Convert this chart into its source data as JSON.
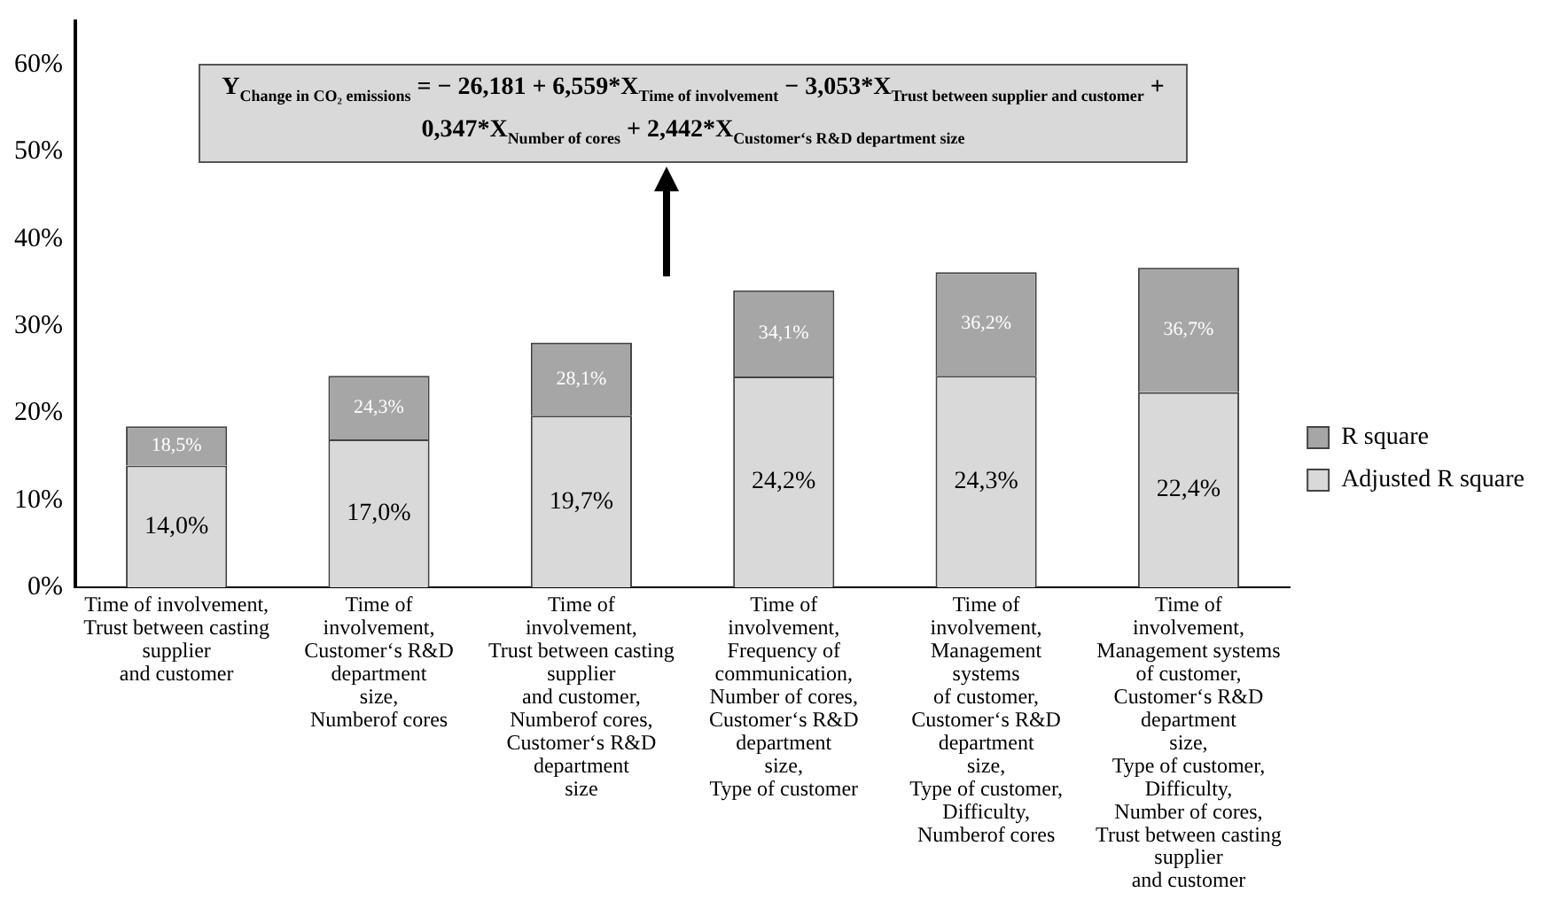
{
  "chart_data": {
    "type": "bar",
    "stacked": true,
    "categories": [
      "Time of involvement,\nTrust between casting\nsupplier\nand customer",
      "Time of\ninvolvement,\nCustomer‘s R&D\ndepartment\nsize,\nNumberof cores",
      "Time of\ninvolvement,\nTrust between casting\nsupplier\nand customer,\nNumberof cores,\nCustomer‘s R&D\ndepartment\nsize",
      "Time of\ninvolvement,\nFrequency of\ncommunication,\nNumber of cores,\nCustomer‘s R&D\ndepartment\nsize,\nType of customer",
      "Time of\ninvolvement,\nManagement\nsystems\nof customer,\nCustomer‘s R&D\ndepartment\nsize,\nType of customer,\nDifficulty,\nNumberof cores",
      "Time of\ninvolvement,\nManagement systems\nof customer,\nCustomer‘s R&D\ndepartment\nsize,\nType of customer,\nDifficulty,\nNumber of cores,\nTrust between casting\nsupplier\nand customer"
    ],
    "series": [
      {
        "name": "Adjusted R square",
        "color": "#d9d9d9",
        "values": [
          14.0,
          17.0,
          19.7,
          24.2,
          24.3,
          22.4
        ],
        "value_labels": [
          "14,0%",
          "17,0%",
          "19,7%",
          "24,2%",
          "24,3%",
          "22,4%"
        ]
      },
      {
        "name": "R square",
        "color": "#a6a6a6",
        "values": [
          4.5,
          7.3,
          8.4,
          9.9,
          11.9,
          14.3
        ]
      }
    ],
    "totals": [
      "18,5%",
      "24,3%",
      "28,1%",
      "34,1%",
      "36,2%",
      "36,7%"
    ],
    "ylim": [
      0,
      65
    ],
    "yticks": [
      {
        "value": 0,
        "label": "0%"
      },
      {
        "value": 10,
        "label": "10%"
      },
      {
        "value": 20,
        "label": "20%"
      },
      {
        "value": 30,
        "label": "30%"
      },
      {
        "value": 40,
        "label": "40%"
      },
      {
        "value": 50,
        "label": "50%"
      },
      {
        "value": 60,
        "label": "60%"
      }
    ],
    "grid": false,
    "legend": "right",
    "annotations": [
      "Y$_{Change in CO₂ emissions}$ = − 26,181 + 6,559*X$_{Time of involvement}$ − 3,053*X$_{Trust between supplier and customer}$ + 0,347*X$_{Number of cores}$ + 2,442*X$_{Customer‘s R&D department size}$"
    ]
  }
}
